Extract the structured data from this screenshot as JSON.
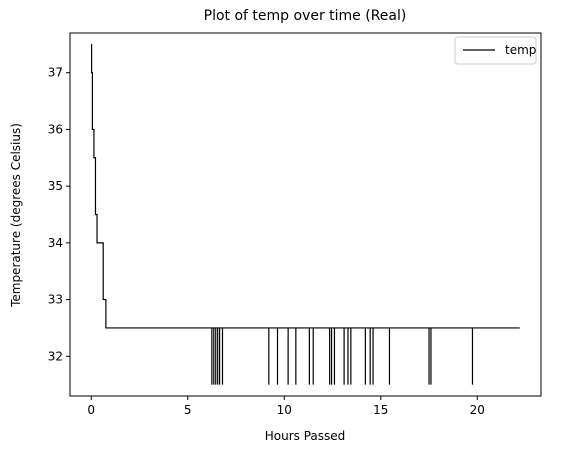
{
  "chart_data": {
    "type": "line",
    "title": "Plot of temp over time (Real)",
    "xlabel": "Hours Passed",
    "ylabel": "Temperature (degrees Celsius)",
    "xlim": [
      -1.1,
      23.3
    ],
    "ylim": [
      31.3,
      37.7
    ],
    "xticks": [
      0,
      5,
      10,
      15,
      20
    ],
    "yticks": [
      32,
      33,
      34,
      35,
      36,
      37
    ],
    "grid": false,
    "legend_position": "top-right",
    "series": [
      {
        "name": "temp",
        "color": "#000000",
        "baseline": 32.5,
        "descent": [
          [
            0.0,
            37.5
          ],
          [
            0.02,
            37.5
          ],
          [
            0.02,
            37.0
          ],
          [
            0.06,
            37.0
          ],
          [
            0.06,
            36.0
          ],
          [
            0.14,
            36.0
          ],
          [
            0.14,
            35.5
          ],
          [
            0.22,
            35.5
          ],
          [
            0.22,
            34.5
          ],
          [
            0.3,
            34.5
          ],
          [
            0.3,
            34.0
          ],
          [
            0.62,
            34.0
          ],
          [
            0.62,
            33.0
          ],
          [
            0.76,
            33.0
          ],
          [
            0.76,
            32.5
          ],
          [
            22.2,
            32.5
          ]
        ],
        "dips": [
          {
            "x": 6.25,
            "y": 31.5
          },
          {
            "x": 6.35,
            "y": 31.5
          },
          {
            "x": 6.45,
            "y": 31.5
          },
          {
            "x": 6.55,
            "y": 31.5
          },
          {
            "x": 6.65,
            "y": 31.5
          },
          {
            "x": 6.8,
            "y": 31.5
          },
          {
            "x": 9.2,
            "y": 31.5
          },
          {
            "x": 9.65,
            "y": 31.5
          },
          {
            "x": 10.2,
            "y": 31.5
          },
          {
            "x": 10.6,
            "y": 31.5
          },
          {
            "x": 11.3,
            "y": 31.5
          },
          {
            "x": 11.5,
            "y": 31.5
          },
          {
            "x": 12.35,
            "y": 31.5
          },
          {
            "x": 12.45,
            "y": 31.5
          },
          {
            "x": 12.6,
            "y": 31.5
          },
          {
            "x": 13.1,
            "y": 31.5
          },
          {
            "x": 13.3,
            "y": 31.5
          },
          {
            "x": 13.45,
            "y": 31.5
          },
          {
            "x": 14.2,
            "y": 31.5
          },
          {
            "x": 14.45,
            "y": 31.5
          },
          {
            "x": 14.6,
            "y": 31.5
          },
          {
            "x": 15.45,
            "y": 31.5
          },
          {
            "x": 17.5,
            "y": 31.5
          },
          {
            "x": 17.6,
            "y": 31.5
          },
          {
            "x": 19.75,
            "y": 31.5
          }
        ]
      }
    ]
  }
}
